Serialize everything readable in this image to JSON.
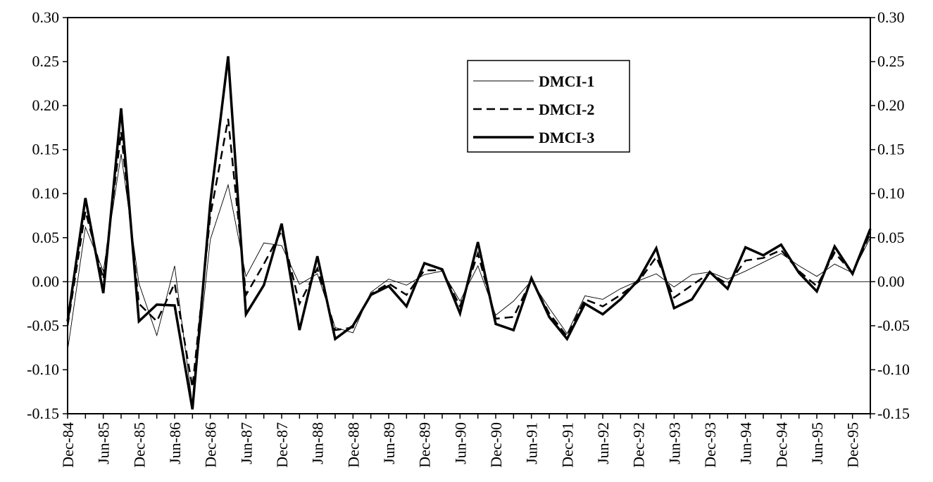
{
  "chart_data": {
    "type": "line",
    "title": "",
    "xlabel": "",
    "ylabel": "",
    "ylim": [
      -0.15,
      0.3
    ],
    "y_ticks": [
      "0.30",
      "0.25",
      "0.20",
      "0.15",
      "0.10",
      "0.05",
      "0.00",
      "-0.05",
      "-0.10",
      "-0.15"
    ],
    "y_tick_values": [
      0.3,
      0.25,
      0.2,
      0.15,
      0.1,
      0.05,
      0.0,
      -0.05,
      -0.1,
      -0.15
    ],
    "x_tick_labels": [
      "Dec-84",
      "Jun-85",
      "Dec-85",
      "Jun-86",
      "Dec-86",
      "Jun-87",
      "Dec-87",
      "Jun-88",
      "Dec-88",
      "Jun-89",
      "Dec-89",
      "Jun-90",
      "Dec-90",
      "Jun-91",
      "Dec-91",
      "Jun-92",
      "Dec-92",
      "Jun-93",
      "Dec-93",
      "Jun-94",
      "Dec-94",
      "Jun-95",
      "Dec-95"
    ],
    "x": [
      "Dec-84",
      "Mar-85",
      "Jun-85",
      "Sep-85",
      "Dec-85",
      "Mar-86",
      "Jun-86",
      "Sep-86",
      "Dec-86",
      "Mar-87",
      "Jun-87",
      "Sep-87",
      "Dec-87",
      "Mar-88",
      "Jun-88",
      "Sep-88",
      "Dec-88",
      "Mar-89",
      "Jun-89",
      "Sep-89",
      "Dec-89",
      "Mar-90",
      "Jun-90",
      "Sep-90",
      "Dec-90",
      "Mar-91",
      "Jun-91",
      "Sep-91",
      "Dec-91",
      "Mar-92",
      "Jun-92",
      "Sep-92",
      "Dec-92",
      "Mar-93",
      "Jun-93",
      "Sep-93",
      "Dec-93",
      "Mar-94",
      "Jun-94",
      "Sep-94",
      "Dec-94",
      "Mar-95",
      "Jun-95",
      "Sep-95",
      "Dec-95",
      "Mar-96"
    ],
    "series": [
      {
        "name": "DMCI-1",
        "style": "thin",
        "values": [
          -0.078,
          0.062,
          0.012,
          0.145,
          -0.002,
          -0.061,
          0.018,
          -0.14,
          0.048,
          0.11,
          0.006,
          0.044,
          0.041,
          -0.003,
          0.009,
          -0.052,
          -0.058,
          -0.012,
          0.003,
          -0.004,
          0.008,
          0.012,
          -0.022,
          0.018,
          -0.038,
          -0.022,
          0.001,
          -0.03,
          -0.059,
          -0.016,
          -0.02,
          -0.008,
          0.001,
          0.009,
          -0.006,
          0.008,
          0.011,
          0.003,
          0.012,
          0.022,
          0.032,
          0.018,
          0.006,
          0.02,
          0.01,
          0.05
        ]
      },
      {
        "name": "DMCI-2",
        "style": "dashed",
        "values": [
          -0.05,
          0.08,
          0.003,
          0.17,
          -0.025,
          -0.045,
          -0.002,
          -0.12,
          0.075,
          0.185,
          -0.015,
          0.02,
          0.058,
          -0.025,
          0.015,
          -0.055,
          -0.052,
          -0.014,
          -0.002,
          -0.015,
          0.013,
          0.013,
          -0.028,
          0.032,
          -0.042,
          -0.04,
          0.002,
          -0.036,
          -0.062,
          -0.02,
          -0.028,
          -0.015,
          0.0,
          0.028,
          -0.018,
          -0.004,
          0.01,
          -0.003,
          0.024,
          0.027,
          0.036,
          0.012,
          -0.005,
          0.033,
          0.01,
          0.055
        ]
      },
      {
        "name": "DMCI-3",
        "style": "thick",
        "values": [
          -0.045,
          0.095,
          -0.013,
          0.197,
          -0.045,
          -0.026,
          -0.027,
          -0.145,
          0.09,
          0.256,
          -0.037,
          -0.004,
          0.066,
          -0.055,
          0.029,
          -0.065,
          -0.05,
          -0.015,
          -0.005,
          -0.028,
          0.021,
          0.014,
          -0.036,
          0.045,
          -0.048,
          -0.055,
          0.004,
          -0.04,
          -0.065,
          -0.025,
          -0.037,
          -0.02,
          0.002,
          0.038,
          -0.03,
          -0.02,
          0.011,
          -0.008,
          0.039,
          0.03,
          0.042,
          0.01,
          -0.011,
          0.04,
          0.009,
          0.06
        ]
      }
    ],
    "legend_placement": "top-center",
    "grid": false,
    "zero_line": true,
    "colors": {
      "line": "#000000",
      "background": "#ffffff"
    }
  }
}
